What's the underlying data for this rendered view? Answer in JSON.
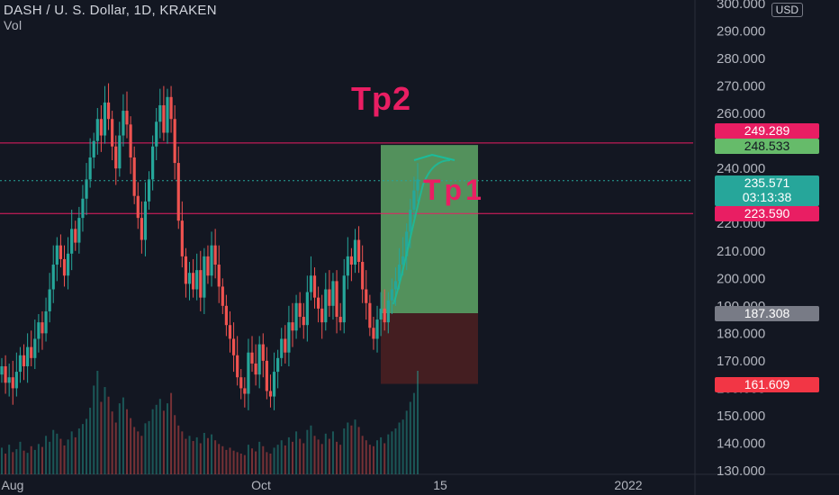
{
  "header": {
    "title": "DASH / U. S. Dollar, 1D, KRAKEN",
    "volume_label": "Vol",
    "currency": "USD"
  },
  "annotations": {
    "tp2": "Tp2",
    "tp1": "Tp1"
  },
  "price_axis": {
    "ticks": [
      "300.000",
      "290.000",
      "280.000",
      "270.000",
      "260.000",
      "250.000",
      "240.000",
      "230.000",
      "220.000",
      "210.000",
      "200.000",
      "190.000",
      "180.000",
      "170.000",
      "160.000",
      "150.000",
      "140.000",
      "130.000"
    ]
  },
  "time_axis": {
    "ticks": [
      "Aug",
      "Oct",
      "15",
      "2022"
    ]
  },
  "badges": {
    "level1": {
      "text": "249.289",
      "color": "#e91e63",
      "textColor": "#ffffff"
    },
    "level2": {
      "text": "248.533",
      "color": "#66bb6a",
      "textColor": "#131722"
    },
    "current_price": {
      "text": "235.571",
      "color": "#26a69a",
      "textColor": "#ffffff"
    },
    "countdown": {
      "text": "03:13:38"
    },
    "level3": {
      "text": "223.590",
      "color": "#e91e63",
      "textColor": "#ffffff"
    },
    "entry": {
      "text": "187.308",
      "color": "#787b86",
      "textColor": "#ffffff"
    },
    "stop": {
      "text": "161.609",
      "color": "#f23645",
      "textColor": "#ffffff"
    }
  },
  "colors": {
    "up": "#26a69a",
    "down": "#ef5350",
    "background": "#131722",
    "target_zone": "#5fa766",
    "stop_zone": "#4a1f21",
    "annotation": "#e91e63",
    "arrow": "#1abc9c"
  },
  "chart_data": {
    "type": "candlestick",
    "title": "DASH / U. S. Dollar, 1D, KRAKEN",
    "ylim": [
      130,
      300
    ],
    "horizontal_levels": [
      249.289,
      223.59
    ],
    "current_price": 235.571,
    "position": {
      "target": 248.533,
      "entry": 187.308,
      "stop": 161.609
    },
    "series": [
      {
        "name": "DASH / U. S. Dollar",
        "close": [
          168,
          162,
          164,
          160,
          166,
          172,
          168,
          175,
          171,
          178,
          184,
          180,
          188,
          196,
          205,
          212,
          207,
          201,
          209,
          218,
          213,
          222,
          229,
          236,
          244,
          250,
          258,
          252,
          264,
          258,
          248,
          240,
          252,
          261,
          256,
          244,
          230,
          222,
          214,
          228,
          236,
          248,
          257,
          263,
          253,
          266,
          258,
          242,
          221,
          208,
          198,
          202,
          196,
          203,
          193,
          208,
          201,
          212,
          205,
          197,
          190,
          183,
          178,
          172,
          164,
          160,
          158,
          173,
          169,
          165,
          176,
          170,
          159,
          157,
          166,
          171,
          178,
          173,
          184,
          181,
          191,
          186,
          183,
          195,
          201,
          193,
          189,
          184,
          196,
          190,
          199,
          186,
          184,
          201,
          208,
          205,
          214,
          206,
          196,
          191,
          182,
          178,
          185,
          189,
          184,
          192,
          196,
          199,
          205,
          208,
          217,
          225,
          232,
          236
        ]
      },
      {
        "name": "Vol",
        "values": [
          36,
          28,
          40,
          30,
          34,
          44,
          32,
          29,
          38,
          33,
          41,
          37,
          52,
          44,
          60,
          55,
          48,
          39,
          47,
          58,
          50,
          62,
          68,
          75,
          90,
          120,
          140,
          98,
          118,
          105,
          85,
          70,
          96,
          104,
          88,
          76,
          64,
          58,
          52,
          69,
          72,
          88,
          94,
          102,
          86,
          96,
          110,
          80,
          66,
          58,
          48,
          52,
          45,
          50,
          42,
          56,
          49,
          54,
          46,
          41,
          38,
          33,
          36,
          32,
          30,
          28,
          26,
          40,
          35,
          31,
          44,
          38,
          30,
          28,
          36,
          40,
          46,
          39,
          50,
          44,
          58,
          48,
          42,
          60,
          66,
          52,
          47,
          41,
          55,
          48,
          58,
          44,
          40,
          62,
          70,
          66,
          74,
          64,
          52,
          46,
          40,
          38,
          46,
          50,
          42,
          54,
          58,
          62,
          70,
          74,
          86,
          98,
          110,
          140
        ]
      }
    ]
  }
}
